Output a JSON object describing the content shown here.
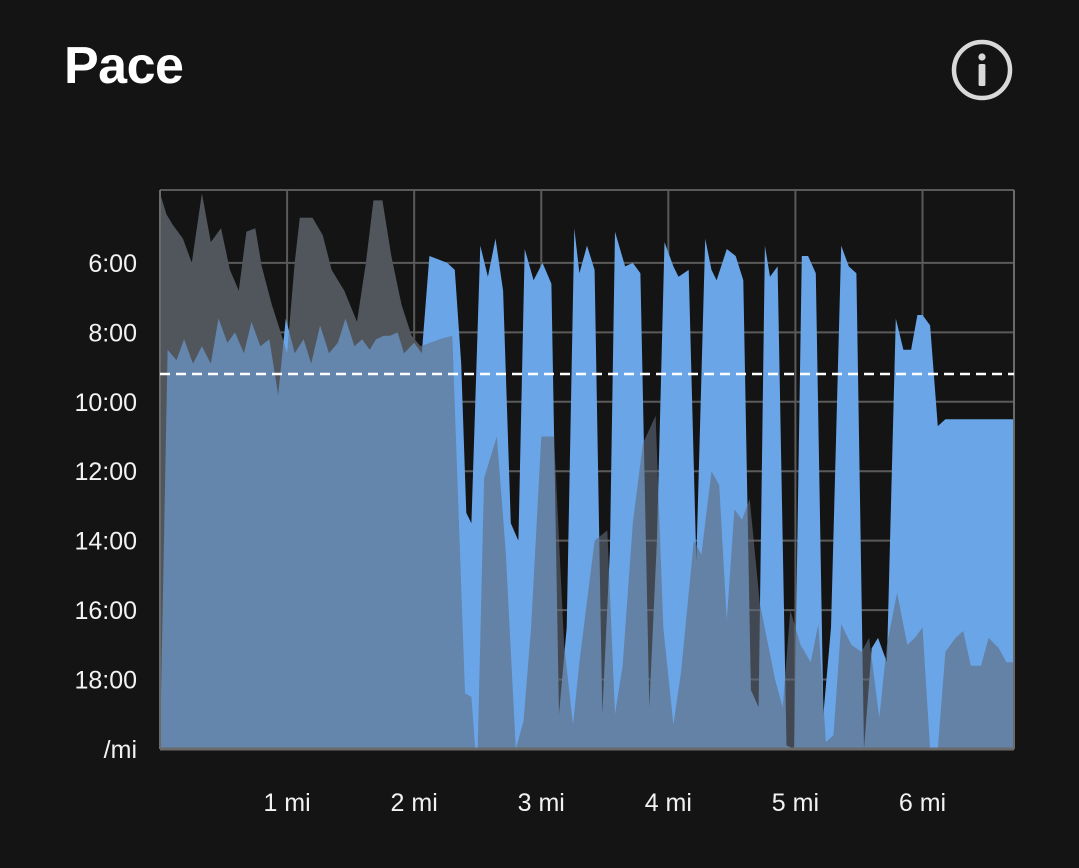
{
  "card": {
    "title": "Pace",
    "info_icon": "info-circle-icon"
  },
  "colors": {
    "background": "#141414",
    "grid": "#5a5a5a",
    "pace_fill": "#6aa5e8",
    "elevation_fill": "#3e3d39",
    "overlap_fill": "#6589b0",
    "average_line": "#ffffff",
    "text": "#f2f2f2"
  },
  "chart_data": {
    "type": "area",
    "x_unit": "mi",
    "y_unit": "min/mi",
    "y_inverted": true,
    "xlim": [
      0,
      6.72
    ],
    "ylim_min_per_mi": [
      3.9,
      20
    ],
    "x_ticks": [
      {
        "value": 1,
        "label": "1 mi"
      },
      {
        "value": 2,
        "label": "2 mi"
      },
      {
        "value": 3,
        "label": "3 mi"
      },
      {
        "value": 4,
        "label": "4 mi"
      },
      {
        "value": 5,
        "label": "5 mi"
      },
      {
        "value": 6,
        "label": "6 mi"
      }
    ],
    "y_ticks": [
      {
        "value": 6,
        "label": "6:00"
      },
      {
        "value": 8,
        "label": "8:00"
      },
      {
        "value": 10,
        "label": "10:00"
      },
      {
        "value": 12,
        "label": "12:00"
      },
      {
        "value": 14,
        "label": "14:00"
      },
      {
        "value": 16,
        "label": "16:00"
      },
      {
        "value": 18,
        "label": "18:00"
      }
    ],
    "y_unit_label": "/mi",
    "average_pace_min_per_mi": 9.2,
    "grid": true,
    "series": [
      {
        "type": "area",
        "x": [
          0,
          0.06,
          0.13,
          0.19,
          0.26,
          0.33,
          0.4,
          0.46,
          0.53,
          0.59,
          0.66,
          0.72,
          0.79,
          0.86,
          0.93,
          0.99,
          1.06,
          1.13,
          1.19,
          1.26,
          1.33,
          1.4,
          1.46,
          1.53,
          1.59,
          1.65,
          1.7,
          1.76,
          1.81,
          1.87,
          1.92,
          2.0,
          2.06,
          2.12,
          2.19,
          2.26,
          2.32,
          2.37,
          2.41,
          2.45,
          2.52,
          2.58,
          2.64,
          2.7,
          2.76,
          2.82,
          2.87,
          2.94,
          3.01,
          3.08,
          3.14,
          3.2,
          3.26,
          3.3,
          3.36,
          3.42,
          3.48,
          3.54,
          3.58,
          3.66,
          3.72,
          3.78,
          3.85,
          3.91,
          3.97,
          4.04,
          4.08,
          4.16,
          4.22,
          4.29,
          4.34,
          4.38,
          4.46,
          4.53,
          4.59,
          4.65,
          4.71,
          4.76,
          4.8,
          4.86,
          4.93,
          4.99,
          5.05,
          5.1,
          5.16,
          5.22,
          5.28,
          5.36,
          5.42,
          5.48,
          5.54,
          5.6,
          5.65,
          5.72,
          5.79,
          5.85,
          5.91,
          5.96,
          6.0,
          6.06,
          6.12,
          6.18,
          6.24,
          6.3,
          6.36,
          6.42,
          6.47,
          6.51,
          6.56,
          6.61,
          6.67,
          6.72
        ],
        "y": [
          20,
          8.5,
          8.8,
          8.2,
          8.9,
          8.4,
          8.9,
          7.6,
          8.3,
          8.0,
          8.6,
          7.7,
          8.4,
          8.2,
          9.8,
          7.6,
          8.6,
          8.2,
          8.9,
          7.8,
          8.6,
          8.3,
          7.6,
          8.4,
          8.2,
          8.5,
          8.2,
          8.1,
          8.1,
          8.0,
          8.6,
          8.3,
          8.6,
          5.8,
          5.9,
          6.0,
          6.2,
          8.9,
          13.2,
          13.5,
          5.5,
          6.4,
          5.3,
          6.8,
          13.5,
          14.0,
          5.6,
          6.5,
          6.0,
          6.6,
          19.0,
          16.5,
          5.0,
          6.3,
          5.5,
          6.2,
          19.0,
          14.3,
          5.1,
          6.1,
          6.0,
          6.3,
          18.8,
          14.0,
          5.4,
          6.1,
          6.4,
          6.2,
          14.6,
          5.3,
          6.2,
          6.5,
          5.6,
          5.8,
          6.5,
          18.3,
          18.8,
          5.5,
          6.4,
          6.1,
          19.9,
          20,
          5.8,
          5.8,
          6.3,
          19.0,
          16.5,
          5.5,
          6.1,
          6.3,
          20,
          17.1,
          16.8,
          17.5,
          7.6,
          8.5,
          8.5,
          7.5,
          7.5,
          7.8,
          10.7,
          10.5,
          10.5,
          10.5,
          10.5,
          10.5,
          10.5,
          10.5,
          10.5,
          10.5,
          10.5,
          10.5
        ]
      }
    ]
  }
}
